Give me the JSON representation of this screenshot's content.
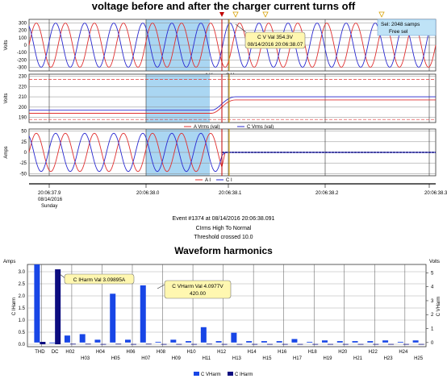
{
  "top_title": "voltage before and after the charger current turns off",
  "event": {
    "line1": "Event #1374 at 08/14/2016 20:06:38.091",
    "line2": "CIrms High To Normal",
    "line3": "Threshold crossed   10.0"
  },
  "selection_badge": {
    "line1": "Sel: 2048 samps",
    "line2": "Free sel"
  },
  "tooltip_voltage": {
    "line1": "C V Val 354.3V",
    "line2": "08/14/2016 20:06:38.07"
  },
  "tooltip_iharm": {
    "line1": "C IHarm Val 3.09895A"
  },
  "tooltip_vharm": {
    "line1": "C VHarm Val 4.0977V",
    "line2": "420.00"
  },
  "colors": {
    "a_phase": "#e03030",
    "c_phase": "#2a2ad0",
    "vharm": "#1846e6",
    "iharm": "#0d0d80",
    "selection": "#8ec8ee"
  },
  "chart_data": [
    {
      "type": "line",
      "ylabel": "Volts",
      "ylim": [
        -350,
        350
      ],
      "yticks": [
        "300",
        "200",
        "100",
        "0",
        "-100",
        "-200",
        "-300"
      ],
      "legend": [
        "A V",
        "C V"
      ],
      "series": [
        {
          "name": "A V",
          "amplitude": 300,
          "cycles": 14
        },
        {
          "name": "C V",
          "amplitude": 300,
          "cycles": 14
        }
      ]
    },
    {
      "type": "line",
      "ylabel": "Volts",
      "ylim": [
        185,
        232
      ],
      "yticks": [
        "230",
        "220",
        "210",
        "200",
        "190"
      ],
      "legend": [
        "A Vrms (val)",
        "C Vrms (val)"
      ],
      "series": [
        {
          "name": "A Vrms (val)",
          "before": 194,
          "after": 207
        },
        {
          "name": "C Vrms (val)",
          "before": 197,
          "after": 210
        }
      ]
    },
    {
      "type": "line",
      "ylabel": "Amps",
      "ylim": [
        -55,
        55
      ],
      "yticks": [
        "50",
        "25",
        "0",
        "-25",
        "-50"
      ],
      "legend": [
        "A I",
        "C I"
      ],
      "series": [
        {
          "name": "A I",
          "amplitude": 45,
          "cycles": 14
        },
        {
          "name": "C I",
          "amplitude": 45,
          "cycles": 14
        }
      ]
    }
  ],
  "time_axis": {
    "ticks": [
      "20:06:37.9",
      "20:06:38.0",
      "20:06:38.1",
      "20:06:38.2",
      "20:06:38.3"
    ],
    "first_date": "08/14/2016",
    "first_day": "Sunday"
  },
  "harmonics_chart": {
    "type": "bar",
    "title": "Waveform harmonics",
    "ylabel_left": "C IHarm",
    "ylabel_right": "C VHarm",
    "unit_left": "Amps",
    "unit_right": "Volts",
    "ylim_left": [
      -0.1,
      3.3
    ],
    "ylim_right": [
      -0.3,
      5.6
    ],
    "left_ticks": [
      "3.0",
      "2.5",
      "2.0",
      "1.5",
      "1.0",
      "0.5",
      "0.0"
    ],
    "right_ticks": [
      "5",
      "4",
      "3",
      "2",
      "1",
      "0"
    ],
    "categories": [
      "THD",
      "DC",
      "H02",
      "H03",
      "H04",
      "H05",
      "H06",
      "H07",
      "H08",
      "H09",
      "H10",
      "H11",
      "H12",
      "H13",
      "H14",
      "H15",
      "H16",
      "H17",
      "H18",
      "H19",
      "H20",
      "H21",
      "H22",
      "H23",
      "H24",
      "H25"
    ],
    "legend": [
      "C VHarm",
      "C IHarm"
    ],
    "series": [
      {
        "name": "C VHarm",
        "values": [
          5.6,
          0.0,
          0.5,
          0.6,
          0.2,
          3.5,
          0.2,
          4.1,
          0.05,
          0.2,
          0.1,
          1.1,
          0.1,
          0.7,
          0.1,
          0.1,
          0.1,
          0.25,
          0.05,
          0.15,
          0.1,
          0.1,
          0.1,
          0.15,
          0.05,
          0.15
        ]
      },
      {
        "name": "C IHarm",
        "values": [
          0.1,
          3.09895,
          0.02,
          0.02,
          0.01,
          0.02,
          0.01,
          0.02,
          0.01,
          0.01,
          0.01,
          0.02,
          0.01,
          0.01,
          0.01,
          0.01,
          0.01,
          0.01,
          0.01,
          0.01,
          0.01,
          0.01,
          0.01,
          0.01,
          0.01,
          0.01
        ]
      }
    ]
  }
}
